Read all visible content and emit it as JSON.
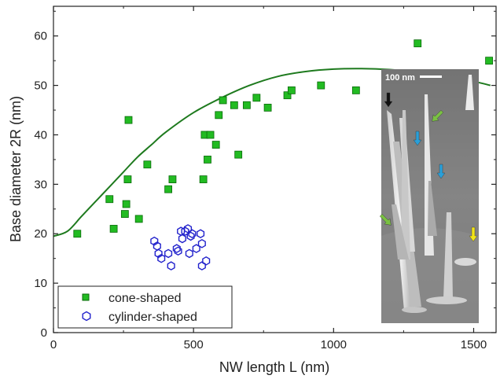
{
  "chart_data": {
    "type": "scatter",
    "xlabel": "NW length L (nm)",
    "ylabel": "Base diameter 2R (nm)",
    "xlim": [
      0,
      1580
    ],
    "ylim": [
      0,
      66
    ],
    "xticks": [
      0,
      500,
      1000,
      1500
    ],
    "yticks": [
      0,
      10,
      20,
      30,
      40,
      50,
      60
    ],
    "grid": false,
    "legend_placement": "bottom-left",
    "series": [
      {
        "name": "cone-shaped",
        "marker": "square",
        "color": "#22bb22",
        "points": [
          [
            85,
            20
          ],
          [
            200,
            27
          ],
          [
            215,
            21
          ],
          [
            255,
            24
          ],
          [
            260,
            26
          ],
          [
            265,
            31
          ],
          [
            268,
            43
          ],
          [
            305,
            23
          ],
          [
            335,
            34
          ],
          [
            410,
            29
          ],
          [
            425,
            31
          ],
          [
            535,
            31
          ],
          [
            540,
            40
          ],
          [
            550,
            35
          ],
          [
            560,
            40
          ],
          [
            580,
            38
          ],
          [
            590,
            44
          ],
          [
            605,
            47
          ],
          [
            645,
            46
          ],
          [
            660,
            36
          ],
          [
            690,
            46
          ],
          [
            725,
            47.5
          ],
          [
            765,
            45.5
          ],
          [
            835,
            48
          ],
          [
            850,
            49
          ],
          [
            955,
            50
          ],
          [
            1080,
            49
          ],
          [
            1300,
            58.5
          ],
          [
            1555,
            55
          ]
        ]
      },
      {
        "name": "cylinder-shaped",
        "marker": "hexagon-open",
        "color": "#2222cc",
        "points": [
          [
            360,
            18.5
          ],
          [
            370,
            17.5
          ],
          [
            375,
            16
          ],
          [
            385,
            15
          ],
          [
            410,
            16
          ],
          [
            420,
            13.5
          ],
          [
            440,
            17
          ],
          [
            445,
            16.5
          ],
          [
            455,
            20.5
          ],
          [
            470,
            20.5
          ],
          [
            480,
            21
          ],
          [
            490,
            19.5
          ],
          [
            485,
            16
          ],
          [
            495,
            20
          ],
          [
            510,
            17
          ],
          [
            525,
            20
          ],
          [
            530,
            18
          ],
          [
            530,
            13.5
          ],
          [
            545,
            14.5
          ],
          [
            460,
            19
          ]
        ]
      }
    ],
    "fit_curve": {
      "color": "#1e7a1e",
      "points": [
        [
          0,
          19.5
        ],
        [
          50,
          20.5
        ],
        [
          100,
          23.5
        ],
        [
          150,
          26.5
        ],
        [
          200,
          29.5
        ],
        [
          250,
          32.5
        ],
        [
          300,
          35.5
        ],
        [
          350,
          38
        ],
        [
          400,
          40.5
        ],
        [
          500,
          44.5
        ],
        [
          600,
          47.5
        ],
        [
          700,
          50
        ],
        [
          800,
          51.8
        ],
        [
          900,
          52.8
        ],
        [
          1000,
          53.3
        ],
        [
          1100,
          53.4
        ],
        [
          1200,
          53.2
        ],
        [
          1300,
          52.7
        ],
        [
          1400,
          51.8
        ],
        [
          1500,
          50.8
        ],
        [
          1560,
          50
        ]
      ]
    },
    "inset": {
      "scale_label": "100 nm",
      "arrows": [
        {
          "color": "#111111"
        },
        {
          "color": "#7ac142"
        },
        {
          "color": "#2a9fd8"
        },
        {
          "color": "#2a9fd8"
        },
        {
          "color": "#7ac142"
        },
        {
          "color": "#f2e418"
        }
      ]
    }
  }
}
